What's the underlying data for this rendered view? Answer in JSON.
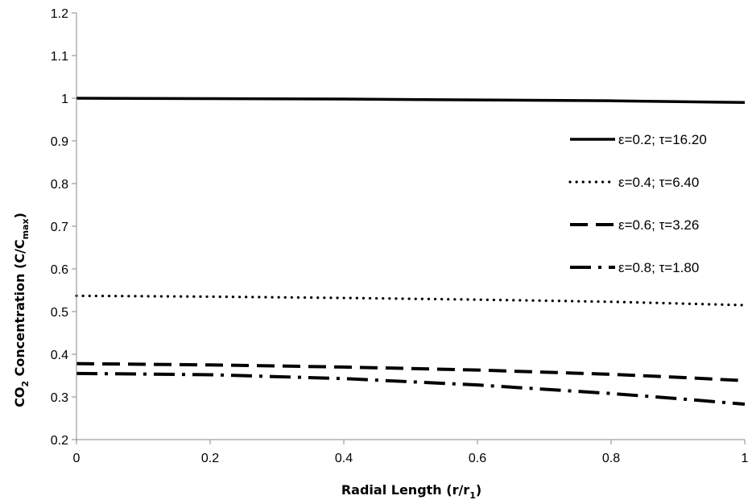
{
  "chart_data": {
    "type": "line",
    "xlabel": {
      "main": "Radial Length (r/r",
      "sub": "1",
      "end": ")"
    },
    "ylabel": {
      "pre": "CO",
      "sub1": "2",
      "mid": " Concentration (C/C",
      "sub2": "max",
      "end": ")"
    },
    "xlim": [
      0,
      1
    ],
    "ylim": [
      0.2,
      1.2
    ],
    "xticks": [
      "0",
      "0.2",
      "0.4",
      "0.6",
      "0.8",
      "1"
    ],
    "xtick_values": [
      0,
      0.2,
      0.4,
      0.6,
      0.8,
      1
    ],
    "yticks": [
      "0.2",
      "0.3",
      "0.4",
      "0.5",
      "0.6",
      "0.7",
      "0.8",
      "0.9",
      "1",
      "1.1",
      "1.2"
    ],
    "ytick_values": [
      0.2,
      0.3,
      0.4,
      0.5,
      0.6,
      0.7,
      0.8,
      0.9,
      1,
      1.1,
      1.2
    ],
    "grid": false,
    "legend_position": "right",
    "series": [
      {
        "name": "ε=0.2; τ=16.20",
        "style": "solid",
        "color": "#000000",
        "x": [
          0,
          0.2,
          0.4,
          0.6,
          0.8,
          0.9,
          1
        ],
        "y": [
          1.0,
          0.999,
          0.998,
          0.996,
          0.994,
          0.992,
          0.99
        ]
      },
      {
        "name": "ε=0.4; τ=6.40",
        "style": "dotted",
        "color": "#000000",
        "x": [
          0,
          0.2,
          0.4,
          0.6,
          0.8,
          0.9,
          1
        ],
        "y": [
          0.537,
          0.535,
          0.532,
          0.528,
          0.523,
          0.519,
          0.515
        ]
      },
      {
        "name": "ε=0.6; τ=3.26",
        "style": "dashed",
        "color": "#000000",
        "x": [
          0,
          0.2,
          0.4,
          0.6,
          0.8,
          0.9,
          1
        ],
        "y": [
          0.378,
          0.375,
          0.37,
          0.363,
          0.353,
          0.346,
          0.338
        ]
      },
      {
        "name": "ε=0.8; τ=1.80",
        "style": "dashdot",
        "color": "#000000",
        "x": [
          0,
          0.2,
          0.4,
          0.6,
          0.8,
          0.9,
          1
        ],
        "y": [
          0.355,
          0.352,
          0.343,
          0.328,
          0.308,
          0.296,
          0.283
        ]
      }
    ]
  }
}
